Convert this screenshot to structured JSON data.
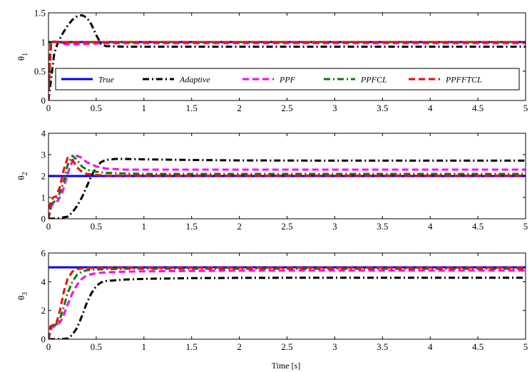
{
  "chart_data": {
    "type": "line",
    "x_label": "Time [s]",
    "x_range": [
      0,
      5
    ],
    "x_ticks": [
      "0",
      "0.5",
      "1",
      "1.5",
      "2",
      "2.5",
      "3",
      "3.5",
      "4",
      "4.5",
      "5"
    ],
    "legend": {
      "placement": "inside lower part of top subplot",
      "entries": [
        "True",
        "Adaptive",
        "PPF",
        "PPFCL",
        "PPFFTCL"
      ]
    },
    "series_styles": [
      {
        "name": "True",
        "color": "#0000ff",
        "dash": "solid"
      },
      {
        "name": "Adaptive",
        "color": "#000000",
        "dash": "dash-dot"
      },
      {
        "name": "PPF",
        "color": "#ff00ff",
        "dash": "dashed"
      },
      {
        "name": "PPFCL",
        "color": "#008000",
        "dash": "dash-dot"
      },
      {
        "name": "PPFFTCL",
        "color": "#ff0000",
        "dash": "dashed"
      }
    ],
    "subplots": [
      {
        "ylabel_main": "θ",
        "ylabel_sub": "1",
        "y_range": [
          0,
          1.5
        ],
        "y_ticks": [
          "0",
          "0.5",
          "1",
          "1.5"
        ],
        "series": [
          {
            "name": "True",
            "x": [
              0,
              5
            ],
            "y": [
              1.0,
              1.0
            ]
          },
          {
            "name": "Adaptive",
            "x": [
              0,
              0.03,
              0.06,
              0.1,
              0.15,
              0.2,
              0.25,
              0.3,
              0.35,
              0.4,
              0.45,
              0.5,
              0.55,
              0.6,
              0.8,
              1,
              2,
              3,
              4,
              5
            ],
            "y": [
              0,
              0.4,
              0.8,
              1.0,
              1.15,
              1.28,
              1.38,
              1.44,
              1.46,
              1.42,
              1.3,
              1.12,
              0.97,
              0.93,
              0.92,
              0.92,
              0.92,
              0.92,
              0.92,
              0.92
            ]
          },
          {
            "name": "PPF",
            "x": [
              0,
              0.02,
              0.05,
              0.1,
              0.15,
              0.2,
              0.3,
              0.4,
              0.6,
              1,
              2,
              3,
              4,
              5
            ],
            "y": [
              0,
              0.95,
              1.0,
              0.99,
              0.97,
              0.96,
              0.96,
              0.97,
              0.98,
              0.98,
              0.98,
              0.98,
              0.98,
              0.98
            ]
          },
          {
            "name": "PPFCL",
            "x": [
              0,
              0.02,
              0.05,
              0.1,
              0.2,
              0.4,
              1,
              2,
              3,
              4,
              5
            ],
            "y": [
              0,
              0.98,
              1.0,
              0.99,
              0.99,
              1.0,
              1.0,
              1.0,
              1.0,
              1.0,
              1.0
            ]
          },
          {
            "name": "PPFFTCL",
            "x": [
              0,
              0.01,
              0.03,
              0.06,
              0.1,
              0.2,
              0.4,
              1,
              2,
              3,
              4,
              5
            ],
            "y": [
              0,
              0.5,
              1.0,
              1.01,
              1.0,
              1.0,
              1.0,
              1.0,
              1.0,
              1.0,
              1.0,
              1.0
            ]
          }
        ]
      },
      {
        "ylabel_main": "θ",
        "ylabel_sub": "2",
        "y_range": [
          0,
          4
        ],
        "y_ticks": [
          "0",
          "1",
          "2",
          "3",
          "4"
        ],
        "series": [
          {
            "name": "True",
            "x": [
              0,
              5
            ],
            "y": [
              2.0,
              2.0
            ]
          },
          {
            "name": "Adaptive",
            "x": [
              0,
              0.1,
              0.2,
              0.25,
              0.3,
              0.35,
              0.4,
              0.45,
              0.5,
              0.55,
              0.6,
              0.7,
              0.8,
              1,
              1.5,
              2,
              3,
              4,
              5
            ],
            "y": [
              0,
              0.02,
              0.1,
              0.3,
              0.6,
              1.0,
              1.5,
              2.0,
              2.4,
              2.65,
              2.75,
              2.8,
              2.8,
              2.78,
              2.75,
              2.73,
              2.72,
              2.72,
              2.72
            ]
          },
          {
            "name": "PPF",
            "x": [
              0,
              0.03,
              0.06,
              0.1,
              0.15,
              0.2,
              0.25,
              0.3,
              0.35,
              0.4,
              0.5,
              0.6,
              0.8,
              1,
              1.5,
              2,
              3,
              4,
              5
            ],
            "y": [
              0,
              0.6,
              0.75,
              0.85,
              1.3,
              2.1,
              2.7,
              2.95,
              2.85,
              2.65,
              2.45,
              2.35,
              2.3,
              2.3,
              2.3,
              2.3,
              2.3,
              2.3,
              2.3
            ]
          },
          {
            "name": "PPFCL",
            "x": [
              0,
              0.03,
              0.06,
              0.1,
              0.15,
              0.2,
              0.25,
              0.3,
              0.35,
              0.4,
              0.5,
              0.6,
              0.8,
              1,
              2,
              3,
              4,
              5
            ],
            "y": [
              0,
              0.7,
              0.8,
              1.0,
              1.6,
              2.5,
              2.95,
              2.75,
              2.45,
              2.3,
              2.2,
              2.15,
              2.12,
              2.1,
              2.1,
              2.1,
              2.1,
              2.1
            ]
          },
          {
            "name": "PPFFTCL",
            "x": [
              0,
              0.02,
              0.05,
              0.08,
              0.12,
              0.16,
              0.2,
              0.25,
              0.3,
              0.35,
              0.4,
              0.5,
              0.6,
              0.8,
              1,
              2,
              3,
              4,
              5
            ],
            "y": [
              0,
              0.8,
              1.0,
              1.05,
              1.5,
              2.3,
              2.85,
              2.75,
              2.4,
              2.2,
              2.1,
              2.05,
              2.03,
              2.02,
              2.02,
              2.02,
              2.02,
              2.02,
              2.02
            ]
          }
        ]
      },
      {
        "ylabel_main": "θ",
        "ylabel_sub": "3",
        "y_range": [
          0,
          6
        ],
        "y_ticks": [
          "0",
          "2",
          "4",
          "6"
        ],
        "series": [
          {
            "name": "True",
            "x": [
              0,
              5
            ],
            "y": [
              5.0,
              5.0
            ]
          },
          {
            "name": "Adaptive",
            "x": [
              0,
              0.15,
              0.2,
              0.25,
              0.3,
              0.35,
              0.4,
              0.45,
              0.5,
              0.55,
              0.6,
              0.7,
              0.8,
              1,
              1.5,
              2,
              3,
              4,
              5
            ],
            "y": [
              0,
              0.02,
              0.05,
              0.3,
              0.8,
              1.6,
              2.5,
              3.2,
              3.7,
              3.95,
              4.05,
              4.1,
              4.15,
              4.2,
              4.25,
              4.27,
              4.28,
              4.28,
              4.28
            ]
          },
          {
            "name": "PPF",
            "x": [
              0,
              0.03,
              0.06,
              0.1,
              0.15,
              0.2,
              0.25,
              0.3,
              0.35,
              0.4,
              0.5,
              0.6,
              0.8,
              1,
              1.5,
              2,
              3,
              4,
              5
            ],
            "y": [
              0,
              0.8,
              0.9,
              1.0,
              1.5,
              2.4,
              3.2,
              3.8,
              4.2,
              4.45,
              4.6,
              4.65,
              4.7,
              4.72,
              4.75,
              4.77,
              4.78,
              4.78,
              4.78
            ]
          },
          {
            "name": "PPFCL",
            "x": [
              0,
              0.03,
              0.06,
              0.1,
              0.15,
              0.2,
              0.25,
              0.3,
              0.35,
              0.4,
              0.5,
              0.6,
              0.8,
              1,
              2,
              3,
              4,
              5
            ],
            "y": [
              0,
              0.9,
              1.0,
              1.05,
              2.0,
              3.2,
              4.0,
              4.5,
              4.7,
              4.8,
              4.85,
              4.88,
              4.9,
              4.9,
              4.9,
              4.9,
              4.9,
              4.9
            ]
          },
          {
            "name": "PPFFTCL",
            "x": [
              0,
              0.02,
              0.05,
              0.08,
              0.12,
              0.16,
              0.2,
              0.25,
              0.3,
              0.35,
              0.4,
              0.5,
              0.6,
              0.8,
              1,
              2,
              3,
              4,
              5
            ],
            "y": [
              0,
              0.9,
              1.0,
              1.05,
              2.0,
              3.3,
              4.2,
              4.7,
              4.88,
              4.93,
              4.95,
              4.97,
              4.98,
              4.98,
              4.98,
              4.98,
              4.98,
              4.98,
              4.98
            ]
          }
        ]
      }
    ]
  }
}
